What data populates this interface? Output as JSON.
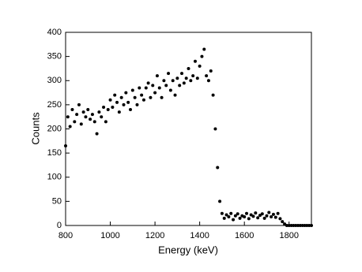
{
  "chart_data": {
    "type": "scatter",
    "xlabel": "Energy (keV)",
    "ylabel": "Counts",
    "color": "#000000",
    "xlim": [
      800,
      1900
    ],
    "ylim": [
      0,
      400
    ],
    "xticks": [
      800,
      1000,
      1200,
      1400,
      1600,
      1800
    ],
    "yticks": [
      0,
      50,
      100,
      150,
      200,
      250,
      300,
      350,
      400
    ],
    "x": [
      800,
      810,
      820,
      830,
      840,
      850,
      860,
      870,
      880,
      890,
      900,
      910,
      920,
      930,
      940,
      950,
      960,
      970,
      980,
      990,
      1000,
      1010,
      1020,
      1030,
      1040,
      1050,
      1060,
      1070,
      1080,
      1090,
      1100,
      1110,
      1120,
      1130,
      1140,
      1150,
      1160,
      1170,
      1180,
      1190,
      1200,
      1210,
      1220,
      1230,
      1240,
      1250,
      1260,
      1270,
      1280,
      1290,
      1300,
      1310,
      1320,
      1330,
      1340,
      1350,
      1360,
      1370,
      1380,
      1390,
      1400,
      1410,
      1420,
      1430,
      1440,
      1450,
      1460,
      1470,
      1480,
      1490,
      1500,
      1510,
      1520,
      1530,
      1540,
      1550,
      1560,
      1570,
      1580,
      1590,
      1600,
      1610,
      1620,
      1630,
      1640,
      1650,
      1660,
      1670,
      1680,
      1690,
      1700,
      1710,
      1720,
      1730,
      1740,
      1750,
      1760,
      1770,
      1780,
      1790,
      1800,
      1810,
      1820,
      1830,
      1840,
      1850,
      1860,
      1870,
      1880,
      1890,
      1900
    ],
    "values": [
      165,
      225,
      205,
      240,
      215,
      230,
      250,
      210,
      235,
      225,
      240,
      220,
      230,
      215,
      190,
      235,
      225,
      245,
      215,
      240,
      260,
      245,
      270,
      255,
      235,
      265,
      250,
      275,
      255,
      240,
      280,
      265,
      250,
      285,
      270,
      260,
      285,
      295,
      265,
      290,
      275,
      310,
      285,
      265,
      300,
      290,
      315,
      280,
      300,
      270,
      305,
      290,
      315,
      295,
      305,
      325,
      300,
      310,
      340,
      305,
      330,
      350,
      365,
      310,
      300,
      320,
      270,
      200,
      120,
      50,
      25,
      15,
      22,
      18,
      25,
      12,
      20,
      24,
      15,
      20,
      18,
      25,
      14,
      22,
      19,
      26,
      16,
      21,
      24,
      15,
      20,
      27,
      18,
      23,
      17,
      25,
      14,
      8,
      3,
      0,
      0,
      0,
      0,
      0,
      0,
      0,
      0,
      0,
      0,
      0,
      0
    ]
  }
}
